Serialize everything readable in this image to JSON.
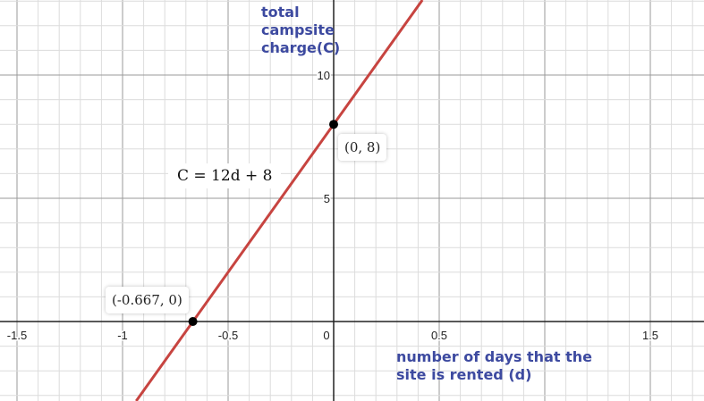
{
  "chart_data": {
    "type": "line",
    "title": "",
    "xlabel": "number of days that the site is rented (d)",
    "ylabel": "total campsite charge(C)",
    "xlim": [
      -1.58,
      1.75
    ],
    "ylim": [
      -3.2,
      13.0
    ],
    "grid": true,
    "x_ticks": [
      "-1.5",
      "-1",
      "-0.5",
      "0",
      "0.5",
      "1.5"
    ],
    "y_ticks": [
      "5",
      "10"
    ],
    "series": [
      {
        "equation": "C = 12d + 8",
        "slope": 12,
        "intercept": 8,
        "color": "#c74440"
      }
    ],
    "points": [
      {
        "x": -0.667,
        "y": 0,
        "label": "(-0.667, 0)"
      },
      {
        "x": 0,
        "y": 8,
        "label": "(0, 8)"
      }
    ],
    "equation_label": "C = 12d + 8"
  }
}
